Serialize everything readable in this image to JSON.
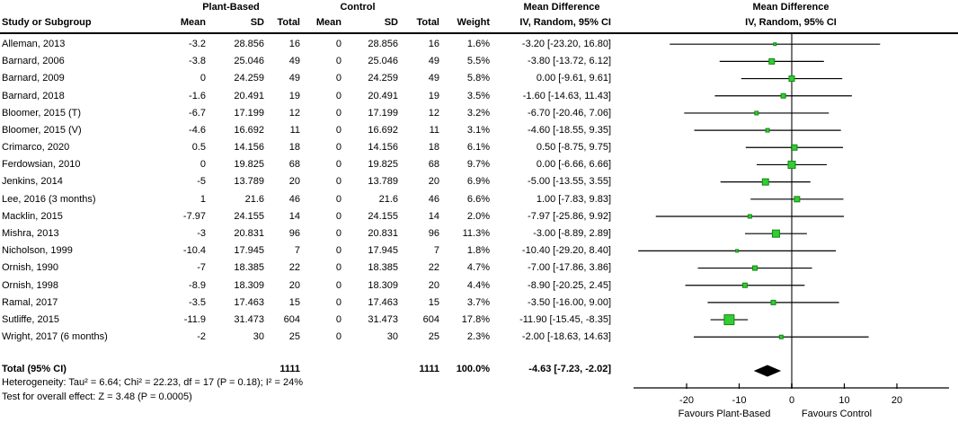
{
  "headers": {
    "study": "Study or Subgroup",
    "group1": "Plant-Based",
    "group2": "Control",
    "mean": "Mean",
    "sd": "SD",
    "total": "Total",
    "weight": "Weight",
    "md_title": "Mean Difference",
    "md_subtitle": "IV, Random, 95% CI"
  },
  "totals": {
    "label": "Total (95% CI)",
    "n_plant_based": "1111",
    "n_control": "1111",
    "weight": "100.0%",
    "ci_text": "-4.63 [-7.23, -2.02]"
  },
  "footnotes": {
    "heterogeneity": "Heterogeneity: Tau² = 6.64; Chi² = 22.23, df = 17 (P = 0.18); I² = 24%",
    "overall_effect": "Test for overall effect: Z = 3.48 (P = 0.0005)"
  },
  "axis": {
    "ticks": [
      -20,
      -10,
      0,
      10,
      20
    ],
    "xlim": [
      -30,
      30
    ],
    "favours_left": "Favours Plant-Based",
    "favours_right": "Favours Control"
  },
  "colors": {
    "marker_fill": "#33CC33",
    "marker_stroke": "#128712",
    "ci_line": "#000000",
    "zero_line": "#787878",
    "axis_line": "#000000",
    "diamond": "#000000"
  },
  "chart_data": {
    "type": "forest",
    "effect_measure": "Mean Difference",
    "model": "IV, Random, 95% CI",
    "studies": [
      {
        "name": "Alleman, 2013",
        "mean_pb": -3.2,
        "sd_pb": 28.856,
        "n_pb": 16,
        "mean_c": 0,
        "sd_c": 28.856,
        "n_c": 16,
        "weight_pct": 1.6,
        "md": -3.2,
        "ci_low": -23.2,
        "ci_high": 16.8
      },
      {
        "name": "Barnard, 2006",
        "mean_pb": -3.8,
        "sd_pb": 25.046,
        "n_pb": 49,
        "mean_c": 0,
        "sd_c": 25.046,
        "n_c": 49,
        "weight_pct": 5.5,
        "md": -3.8,
        "ci_low": -13.72,
        "ci_high": 6.12
      },
      {
        "name": "Barnard, 2009",
        "mean_pb": 0,
        "sd_pb": 24.259,
        "n_pb": 49,
        "mean_c": 0,
        "sd_c": 24.259,
        "n_c": 49,
        "weight_pct": 5.8,
        "md": 0,
        "ci_low": -9.61,
        "ci_high": 9.61
      },
      {
        "name": "Barnard, 2018",
        "mean_pb": -1.6,
        "sd_pb": 20.491,
        "n_pb": 19,
        "mean_c": 0,
        "sd_c": 20.491,
        "n_c": 19,
        "weight_pct": 3.5,
        "md": -1.6,
        "ci_low": -14.63,
        "ci_high": 11.43
      },
      {
        "name": "Bloomer, 2015 (T)",
        "mean_pb": -6.7,
        "sd_pb": 17.199,
        "n_pb": 12,
        "mean_c": 0,
        "sd_c": 17.199,
        "n_c": 12,
        "weight_pct": 3.2,
        "md": -6.7,
        "ci_low": -20.46,
        "ci_high": 7.06
      },
      {
        "name": "Bloomer, 2015 (V)",
        "mean_pb": -4.6,
        "sd_pb": 16.692,
        "n_pb": 11,
        "mean_c": 0,
        "sd_c": 16.692,
        "n_c": 11,
        "weight_pct": 3.1,
        "md": -4.6,
        "ci_low": -18.55,
        "ci_high": 9.35
      },
      {
        "name": "Crimarco, 2020",
        "mean_pb": 0.5,
        "sd_pb": 14.156,
        "n_pb": 18,
        "mean_c": 0,
        "sd_c": 14.156,
        "n_c": 18,
        "weight_pct": 6.1,
        "md": 0.5,
        "ci_low": -8.75,
        "ci_high": 9.75
      },
      {
        "name": "Ferdowsian, 2010",
        "mean_pb": 0,
        "sd_pb": 19.825,
        "n_pb": 68,
        "mean_c": 0,
        "sd_c": 19.825,
        "n_c": 68,
        "weight_pct": 9.7,
        "md": 0,
        "ci_low": -6.66,
        "ci_high": 6.66
      },
      {
        "name": "Jenkins, 2014",
        "mean_pb": -5,
        "sd_pb": 13.789,
        "n_pb": 20,
        "mean_c": 0,
        "sd_c": 13.789,
        "n_c": 20,
        "weight_pct": 6.9,
        "md": -5,
        "ci_low": -13.55,
        "ci_high": 3.55
      },
      {
        "name": "Lee, 2016 (3 months)",
        "mean_pb": 1,
        "sd_pb": 21.6,
        "n_pb": 46,
        "mean_c": 0,
        "sd_c": 21.6,
        "n_c": 46,
        "weight_pct": 6.6,
        "md": 1,
        "ci_low": -7.83,
        "ci_high": 9.83
      },
      {
        "name": "Macklin, 2015",
        "mean_pb": -7.97,
        "sd_pb": 24.155,
        "n_pb": 14,
        "mean_c": 0,
        "sd_c": 24.155,
        "n_c": 14,
        "weight_pct": 2.0,
        "md": -7.97,
        "ci_low": -25.86,
        "ci_high": 9.92
      },
      {
        "name": "Mishra, 2013",
        "mean_pb": -3,
        "sd_pb": 20.831,
        "n_pb": 96,
        "mean_c": 0,
        "sd_c": 20.831,
        "n_c": 96,
        "weight_pct": 11.3,
        "md": -3,
        "ci_low": -8.89,
        "ci_high": 2.89
      },
      {
        "name": "Nicholson, 1999",
        "mean_pb": -10.4,
        "sd_pb": 17.945,
        "n_pb": 7,
        "mean_c": 0,
        "sd_c": 17.945,
        "n_c": 7,
        "weight_pct": 1.8,
        "md": -10.4,
        "ci_low": -29.2,
        "ci_high": 8.4
      },
      {
        "name": "Ornish, 1990",
        "mean_pb": -7,
        "sd_pb": 18.385,
        "n_pb": 22,
        "mean_c": 0,
        "sd_c": 18.385,
        "n_c": 22,
        "weight_pct": 4.7,
        "md": -7,
        "ci_low": -17.86,
        "ci_high": 3.86
      },
      {
        "name": "Ornish, 1998",
        "mean_pb": -8.9,
        "sd_pb": 18.309,
        "n_pb": 20,
        "mean_c": 0,
        "sd_c": 18.309,
        "n_c": 20,
        "weight_pct": 4.4,
        "md": -8.9,
        "ci_low": -20.25,
        "ci_high": 2.45
      },
      {
        "name": "Ramal, 2017",
        "mean_pb": -3.5,
        "sd_pb": 17.463,
        "n_pb": 15,
        "mean_c": 0,
        "sd_c": 17.463,
        "n_c": 15,
        "weight_pct": 3.7,
        "md": -3.5,
        "ci_low": -16,
        "ci_high": 9
      },
      {
        "name": "Sutliffe, 2015",
        "mean_pb": -11.9,
        "sd_pb": 31.473,
        "n_pb": 604,
        "mean_c": 0,
        "sd_c": 31.473,
        "n_c": 604,
        "weight_pct": 17.8,
        "md": -11.9,
        "ci_low": -15.45,
        "ci_high": -8.35
      },
      {
        "name": "Wright, 2017 (6 months)",
        "mean_pb": -2,
        "sd_pb": 30,
        "n_pb": 25,
        "mean_c": 0,
        "sd_c": 30,
        "n_c": 25,
        "weight_pct": 2.3,
        "md": -2,
        "ci_low": -18.63,
        "ci_high": 14.63
      }
    ],
    "total": {
      "n_pb": 1111,
      "n_c": 1111,
      "weight_pct": 100.0,
      "md": -4.63,
      "ci_low": -7.23,
      "ci_high": -2.02
    },
    "heterogeneity": {
      "tau2": 6.64,
      "chi2": 22.23,
      "df": 17,
      "p": 0.18,
      "i2_pct": 24
    },
    "overall_effect": {
      "z": 3.48,
      "p": 0.0005
    }
  }
}
